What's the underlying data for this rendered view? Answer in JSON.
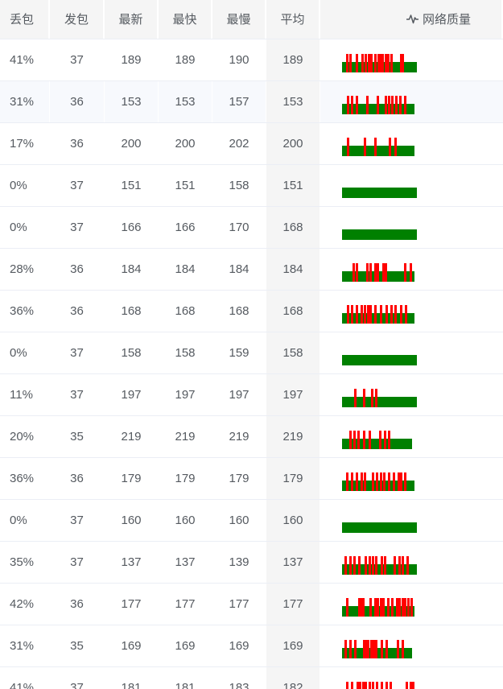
{
  "columns": {
    "loss": "丢包",
    "sent": "发包",
    "latest": "最新",
    "fastest": "最快",
    "slowest": "最慢",
    "average": "平均",
    "quality": "网络质量"
  },
  "icons": {
    "quality": "activity-pulse-icon"
  },
  "colors": {
    "ok": "#008000",
    "loss": "#ff0000"
  },
  "rows": [
    {
      "loss": "41%",
      "sent": "37",
      "latest": "189",
      "fastest": "189",
      "slowest": "190",
      "average": "189",
      "quality": {
        "received_fraction": 1.0,
        "loss_marks": [
          0.05,
          0.1,
          0.18,
          0.26,
          0.3,
          0.34,
          0.38,
          0.43,
          0.47,
          0.5,
          0.53,
          0.57,
          0.6,
          0.64,
          0.77,
          0.8
        ]
      }
    },
    {
      "loss": "31%",
      "sent": "36",
      "latest": "153",
      "fastest": "153",
      "slowest": "157",
      "average": "153",
      "quality": {
        "received_fraction": 0.97,
        "loss_marks": [
          0.07,
          0.12,
          0.19,
          0.33,
          0.48,
          0.59,
          0.63,
          0.68,
          0.73,
          0.79,
          0.85
        ]
      }
    },
    {
      "loss": "17%",
      "sent": "36",
      "latest": "200",
      "fastest": "200",
      "slowest": "202",
      "average": "200",
      "quality": {
        "received_fraction": 0.97,
        "loss_marks": [
          0.07,
          0.3,
          0.44,
          0.64,
          0.72
        ]
      }
    },
    {
      "loss": "0%",
      "sent": "37",
      "latest": "151",
      "fastest": "151",
      "slowest": "158",
      "average": "151",
      "quality": {
        "received_fraction": 1.0,
        "loss_marks": []
      }
    },
    {
      "loss": "0%",
      "sent": "37",
      "latest": "166",
      "fastest": "166",
      "slowest": "170",
      "average": "168",
      "quality": {
        "received_fraction": 1.0,
        "loss_marks": []
      }
    },
    {
      "loss": "28%",
      "sent": "36",
      "latest": "184",
      "fastest": "184",
      "slowest": "184",
      "average": "184",
      "quality": {
        "received_fraction": 0.97,
        "loss_marks": [
          0.14,
          0.19,
          0.33,
          0.38,
          0.44,
          0.48,
          0.55,
          0.59,
          0.85,
          0.93
        ]
      }
    },
    {
      "loss": "36%",
      "sent": "36",
      "latest": "168",
      "fastest": "168",
      "slowest": "168",
      "average": "168",
      "quality": {
        "received_fraction": 0.97,
        "loss_marks": [
          0.07,
          0.12,
          0.19,
          0.25,
          0.3,
          0.34,
          0.38,
          0.44,
          0.52,
          0.6,
          0.67,
          0.72,
          0.8,
          0.87
        ]
      }
    },
    {
      "loss": "0%",
      "sent": "37",
      "latest": "158",
      "fastest": "158",
      "slowest": "159",
      "average": "158",
      "quality": {
        "received_fraction": 1.0,
        "loss_marks": []
      }
    },
    {
      "loss": "11%",
      "sent": "37",
      "latest": "197",
      "fastest": "197",
      "slowest": "197",
      "average": "197",
      "quality": {
        "received_fraction": 1.0,
        "loss_marks": [
          0.16,
          0.28,
          0.39,
          0.44
        ]
      }
    },
    {
      "loss": "20%",
      "sent": "35",
      "latest": "219",
      "fastest": "219",
      "slowest": "219",
      "average": "219",
      "quality": {
        "received_fraction": 0.94,
        "loss_marks": [
          0.1,
          0.16,
          0.22,
          0.3,
          0.38,
          0.53,
          0.6,
          0.66
        ]
      }
    },
    {
      "loss": "36%",
      "sent": "36",
      "latest": "179",
      "fastest": "179",
      "slowest": "179",
      "average": "179",
      "quality": {
        "received_fraction": 0.97,
        "loss_marks": [
          0.05,
          0.12,
          0.19,
          0.25,
          0.3,
          0.41,
          0.47,
          0.52,
          0.57,
          0.63,
          0.7,
          0.77,
          0.8,
          0.86
        ]
      }
    },
    {
      "loss": "0%",
      "sent": "37",
      "latest": "160",
      "fastest": "160",
      "slowest": "160",
      "average": "160",
      "quality": {
        "received_fraction": 1.0,
        "loss_marks": []
      }
    },
    {
      "loss": "35%",
      "sent": "37",
      "latest": "137",
      "fastest": "137",
      "slowest": "139",
      "average": "137",
      "quality": {
        "received_fraction": 1.0,
        "loss_marks": [
          0.03,
          0.1,
          0.15,
          0.22,
          0.3,
          0.35,
          0.4,
          0.44,
          0.52,
          0.56,
          0.69,
          0.75,
          0.8,
          0.86
        ]
      }
    },
    {
      "loss": "42%",
      "sent": "36",
      "latest": "177",
      "fastest": "177",
      "slowest": "177",
      "average": "177",
      "quality": {
        "received_fraction": 0.97,
        "loss_marks": [
          0.05,
          0.22,
          0.25,
          0.28,
          0.38,
          0.44,
          0.48,
          0.52,
          0.56,
          0.62,
          0.68,
          0.74,
          0.78,
          0.82,
          0.86,
          0.9,
          0.94
        ]
      }
    },
    {
      "loss": "31%",
      "sent": "35",
      "latest": "169",
      "fastest": "169",
      "slowest": "169",
      "average": "169",
      "quality": {
        "received_fraction": 0.94,
        "loss_marks": [
          0.03,
          0.1,
          0.17,
          0.3,
          0.33,
          0.36,
          0.4,
          0.44,
          0.47,
          0.55,
          0.62,
          0.78,
          0.85
        ]
      }
    },
    {
      "loss": "41%",
      "sent": "37",
      "latest": "181",
      "fastest": "181",
      "slowest": "183",
      "average": "182",
      "quality": {
        "received_fraction": 1.0,
        "loss_marks": [
          0.05,
          0.12,
          0.19,
          0.23,
          0.27,
          0.3,
          0.35,
          0.4,
          0.45,
          0.52,
          0.58,
          0.63,
          0.85,
          0.9,
          0.94
        ]
      }
    }
  ]
}
